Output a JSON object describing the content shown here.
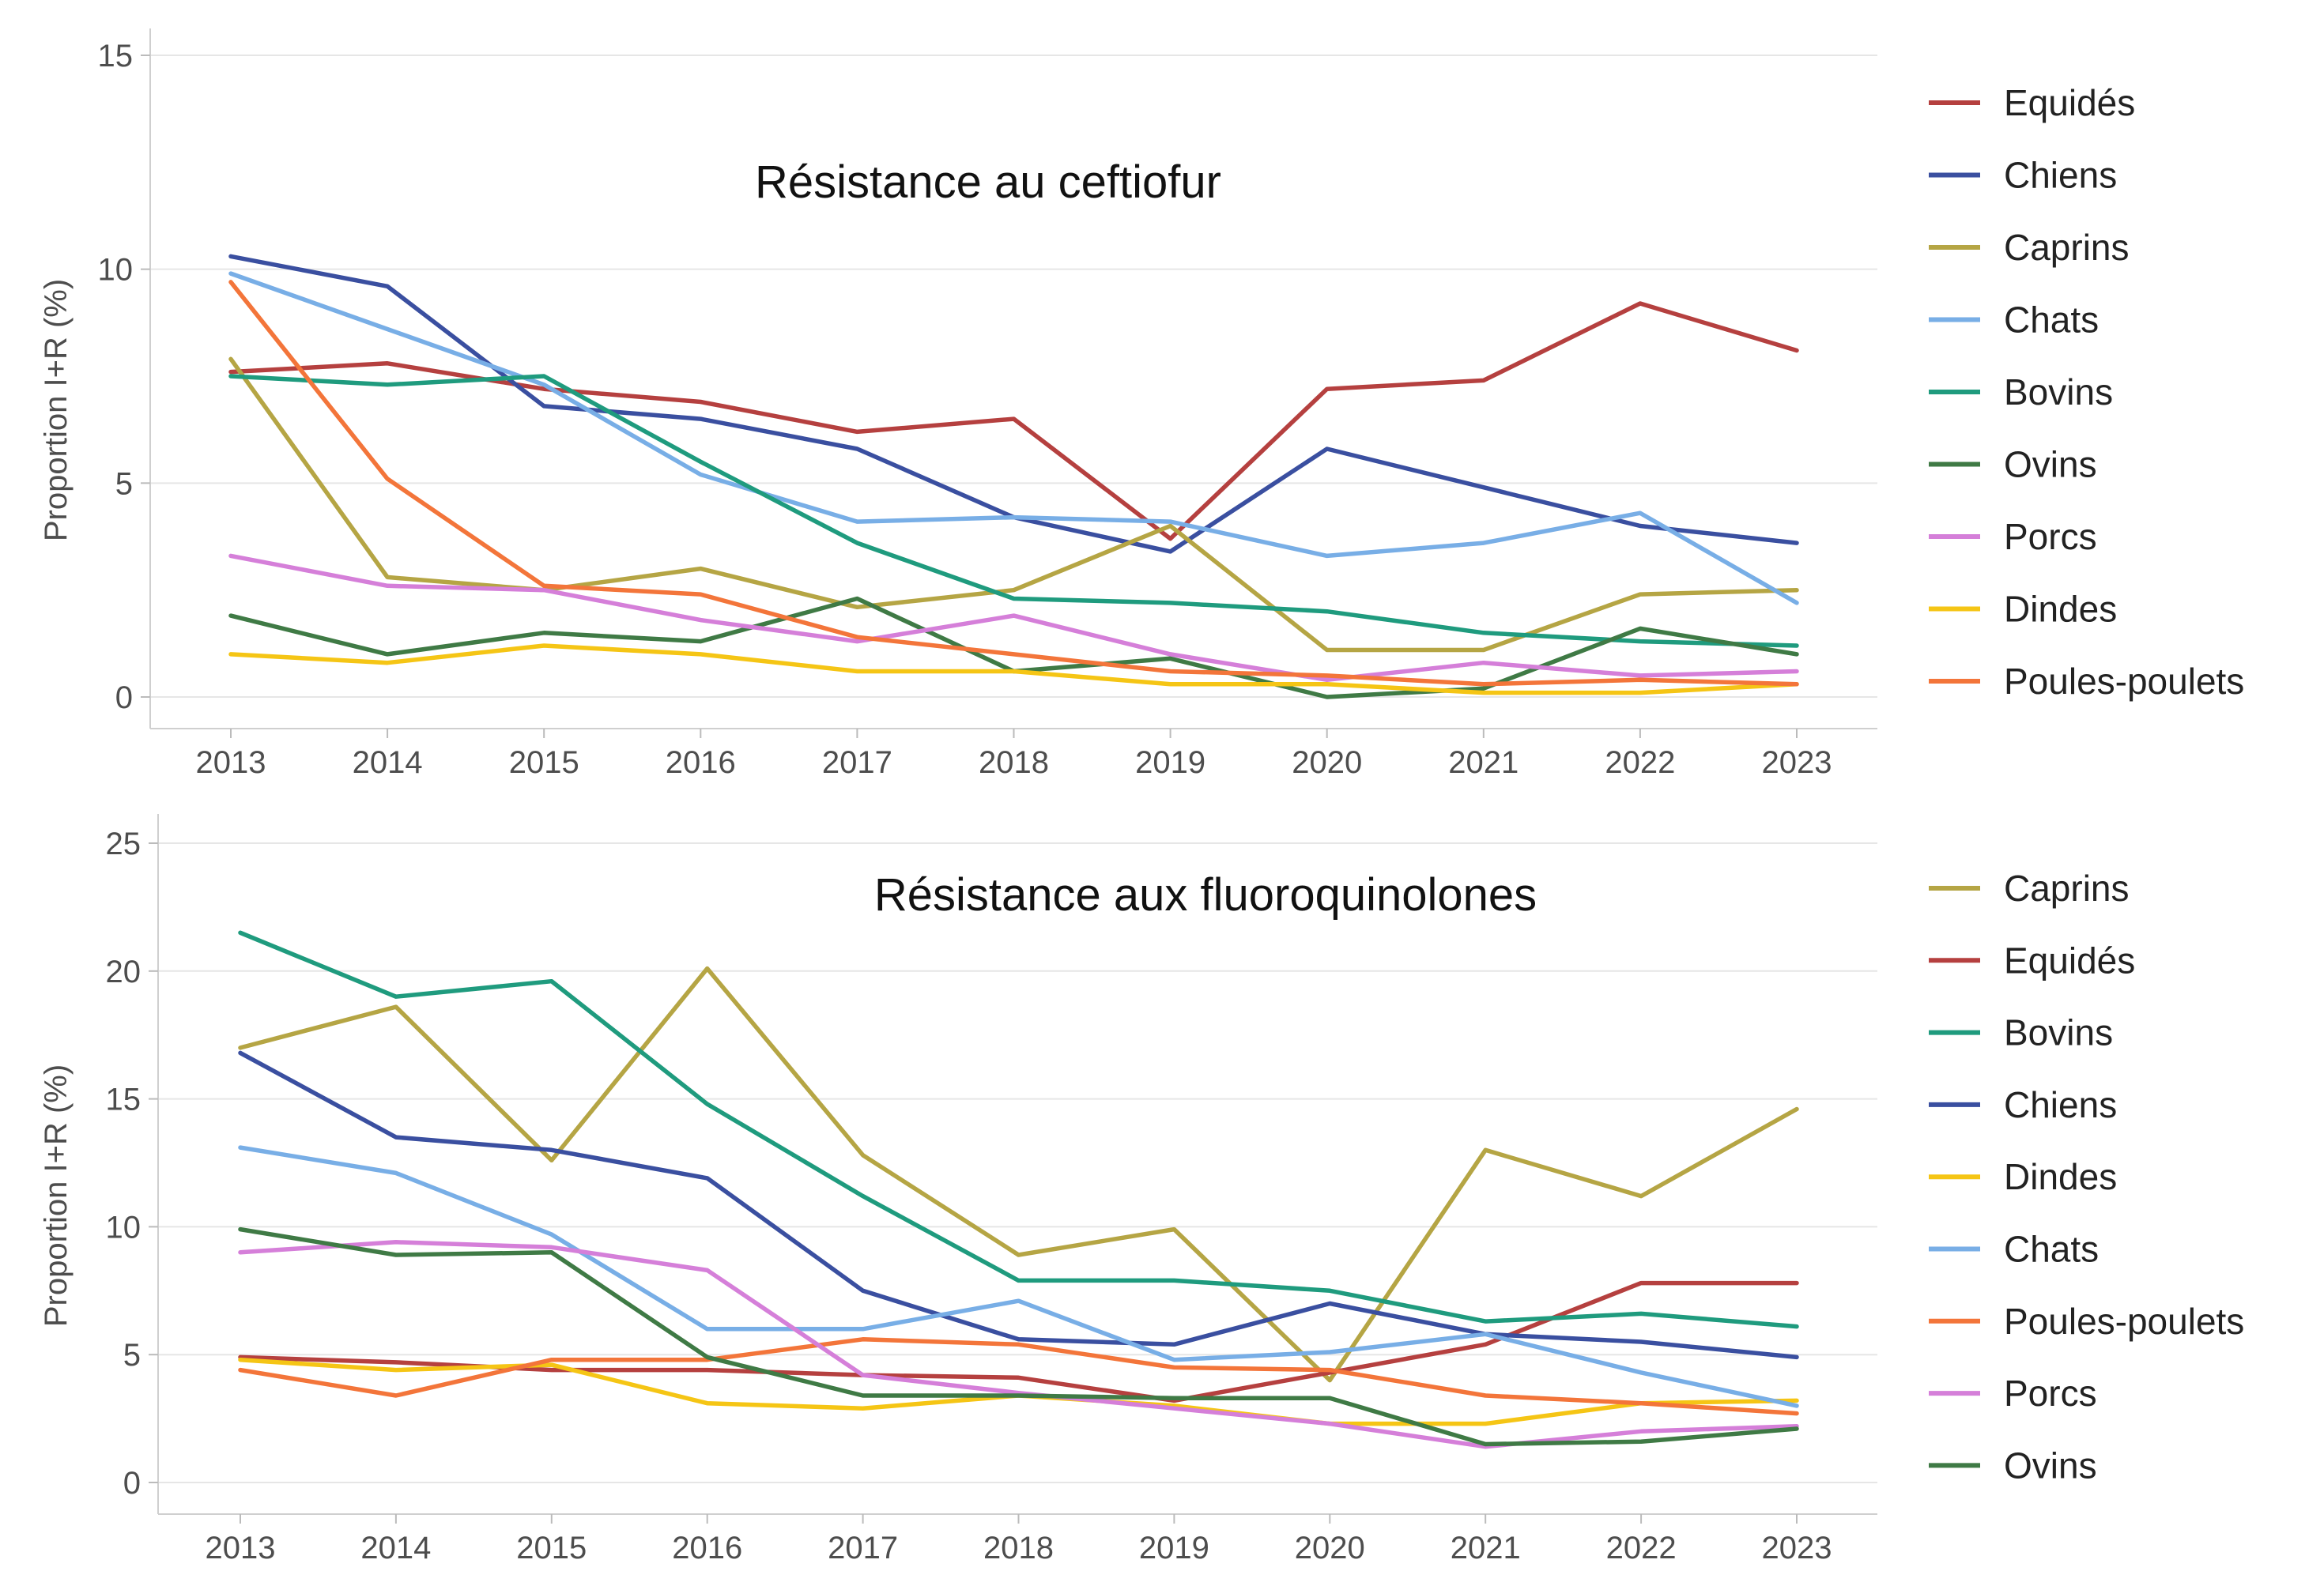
{
  "chart_data": [
    {
      "type": "line",
      "title": "Résistance au ceftiofur",
      "ylabel": "Proportion I+R (%)",
      "xlabel": "",
      "x": [
        "2013",
        "2014",
        "2015",
        "2016",
        "2017",
        "2018",
        "2019",
        "2020",
        "2021",
        "2022",
        "2023"
      ],
      "ylim": [
        0,
        15
      ],
      "yticks": [
        0,
        5,
        10,
        15
      ],
      "grid": true,
      "legend_position": "right",
      "series": [
        {
          "name": "Equidés",
          "color": "#b5403f",
          "values": [
            7.6,
            7.8,
            7.2,
            6.9,
            6.2,
            6.5,
            3.7,
            7.2,
            7.4,
            9.2,
            8.1
          ]
        },
        {
          "name": "Chiens",
          "color": "#3a4fa0",
          "values": [
            10.3,
            9.6,
            6.8,
            6.5,
            5.8,
            4.2,
            3.4,
            5.8,
            4.9,
            4.0,
            3.6
          ]
        },
        {
          "name": "Caprins",
          "color": "#b5a544",
          "values": [
            7.9,
            2.8,
            2.5,
            3.0,
            2.1,
            2.5,
            4.0,
            1.1,
            1.1,
            2.4,
            2.5
          ]
        },
        {
          "name": "Chats",
          "color": "#78aee6",
          "values": [
            9.9,
            8.6,
            7.3,
            5.2,
            4.1,
            4.2,
            4.1,
            3.3,
            3.6,
            4.3,
            2.2
          ]
        },
        {
          "name": "Bovins",
          "color": "#1f9b7e",
          "values": [
            7.5,
            7.3,
            7.5,
            5.5,
            3.6,
            2.3,
            2.2,
            2.0,
            1.5,
            1.3,
            1.2
          ]
        },
        {
          "name": "Ovins",
          "color": "#3f7a45",
          "values": [
            1.9,
            1.0,
            1.5,
            1.3,
            2.3,
            0.6,
            0.9,
            0.0,
            0.2,
            1.6,
            1.0
          ]
        },
        {
          "name": "Porcs",
          "color": "#d57fd9",
          "values": [
            3.3,
            2.6,
            2.5,
            1.8,
            1.3,
            1.9,
            1.0,
            0.4,
            0.8,
            0.5,
            0.6
          ]
        },
        {
          "name": "Dindes",
          "color": "#f5c515",
          "values": [
            1.0,
            0.8,
            1.2,
            1.0,
            0.6,
            0.6,
            0.3,
            0.3,
            0.1,
            0.1,
            0.3
          ]
        },
        {
          "name": "Poules-poulets",
          "color": "#f3753a",
          "values": [
            9.7,
            5.1,
            2.6,
            2.4,
            1.4,
            1.0,
            0.6,
            0.5,
            0.3,
            0.4,
            0.3
          ]
        }
      ]
    },
    {
      "type": "line",
      "title": "Résistance aux fluoroquinolones",
      "ylabel": "Proportion I+R (%)",
      "xlabel": "",
      "x": [
        "2013",
        "2014",
        "2015",
        "2016",
        "2017",
        "2018",
        "2019",
        "2020",
        "2021",
        "2022",
        "2023"
      ],
      "ylim": [
        0,
        25
      ],
      "yticks": [
        0,
        5,
        10,
        15,
        20,
        25
      ],
      "grid": true,
      "legend_position": "right",
      "series": [
        {
          "name": "Caprins",
          "color": "#b5a544",
          "values": [
            17.0,
            18.6,
            12.6,
            20.1,
            12.8,
            8.9,
            9.9,
            4.0,
            13.0,
            11.2,
            14.6
          ]
        },
        {
          "name": "Equidés",
          "color": "#b5403f",
          "values": [
            4.9,
            4.7,
            4.4,
            4.4,
            4.2,
            4.1,
            3.2,
            4.3,
            5.4,
            7.8,
            7.8
          ]
        },
        {
          "name": "Bovins",
          "color": "#1f9b7e",
          "values": [
            21.5,
            19.0,
            19.6,
            14.8,
            11.2,
            7.9,
            7.9,
            7.5,
            6.3,
            6.6,
            6.1
          ]
        },
        {
          "name": "Chiens",
          "color": "#3a4fa0",
          "values": [
            16.8,
            13.5,
            13.0,
            11.9,
            7.5,
            5.6,
            5.4,
            7.0,
            5.8,
            5.5,
            4.9
          ]
        },
        {
          "name": "Dindes",
          "color": "#f5c515",
          "values": [
            4.8,
            4.4,
            4.6,
            3.1,
            2.9,
            3.4,
            3.0,
            2.3,
            2.3,
            3.1,
            3.2
          ]
        },
        {
          "name": "Chats",
          "color": "#78aee6",
          "values": [
            13.1,
            12.1,
            9.7,
            6.0,
            6.0,
            7.1,
            4.8,
            5.1,
            5.8,
            4.3,
            3.0
          ]
        },
        {
          "name": "Poules-poulets",
          "color": "#f3753a",
          "values": [
            4.4,
            3.4,
            4.8,
            4.8,
            5.6,
            5.4,
            4.5,
            4.4,
            3.4,
            3.1,
            2.7
          ]
        },
        {
          "name": "Porcs",
          "color": "#d57fd9",
          "values": [
            9.0,
            9.4,
            9.2,
            8.3,
            4.2,
            3.5,
            2.9,
            2.3,
            1.4,
            2.0,
            2.2
          ]
        },
        {
          "name": "Ovins",
          "color": "#3f7a45",
          "values": [
            9.9,
            8.9,
            9.0,
            4.9,
            3.4,
            3.4,
            3.3,
            3.3,
            1.5,
            1.6,
            2.1
          ]
        }
      ]
    }
  ]
}
